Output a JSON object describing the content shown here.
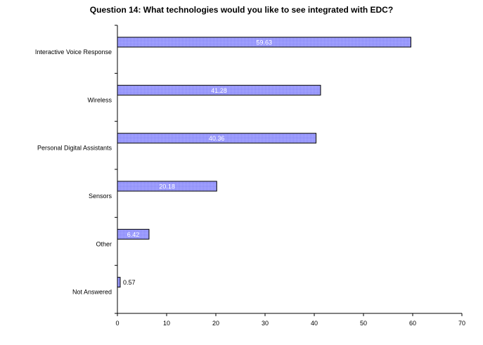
{
  "chart_data": {
    "type": "bar",
    "orientation": "horizontal",
    "title": "Question 14: What technologies would you like to see integrated with EDC?",
    "categories": [
      "Interactive Voice Response",
      "Wireless",
      "Personal Digital Assistants",
      "Sensors",
      "Other",
      "Not Answered"
    ],
    "values": [
      59.63,
      41.28,
      40.36,
      20.18,
      6.42,
      0.57
    ],
    "data_labels": [
      "59.63",
      "41.28",
      "40.36",
      "20.18",
      "6.42",
      "0.57"
    ],
    "xlabel": "",
    "ylabel": "",
    "xlim": [
      0,
      70
    ],
    "x_ticks": [
      "0",
      "10",
      "20",
      "30",
      "40",
      "50",
      "60",
      "70"
    ],
    "grid": false,
    "legend": "none",
    "colors": {
      "bar_fill": "#9999ff",
      "bar_stroke": "#000000",
      "axis": "#000000",
      "label_inside": "#ffffff",
      "label_outside": "#000000"
    }
  }
}
